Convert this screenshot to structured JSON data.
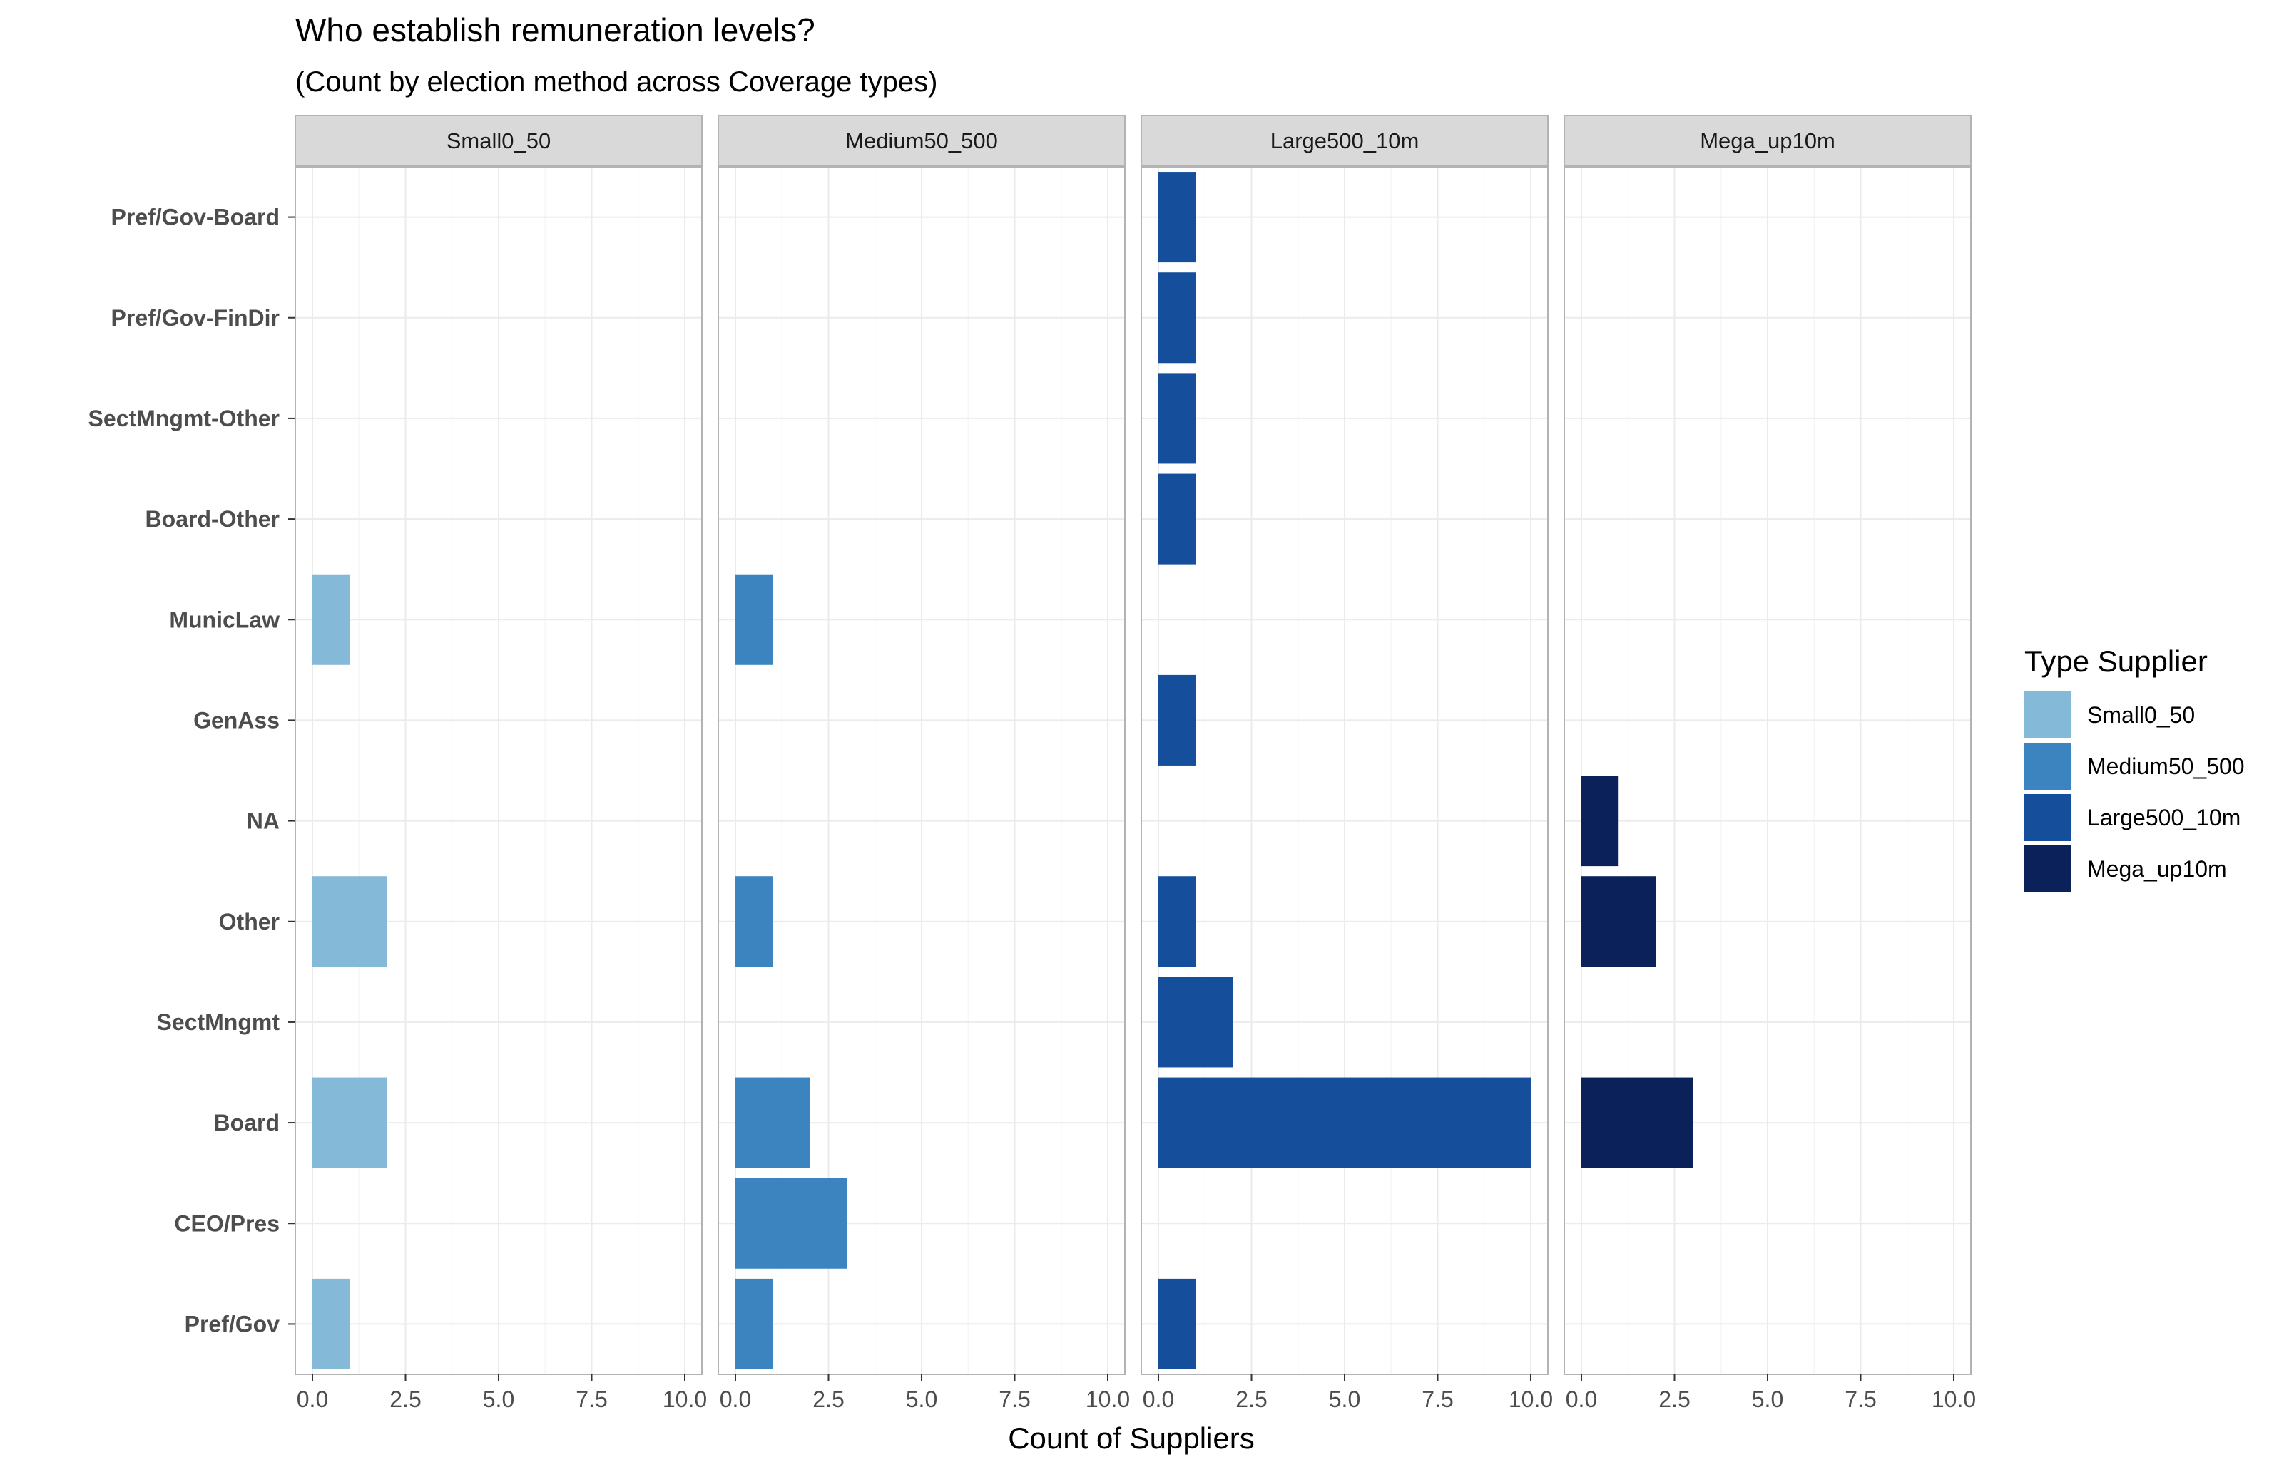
{
  "chart_data": {
    "type": "bar",
    "orientation": "horizontal",
    "title": "Who establish remuneration levels?",
    "subtitle": "(Count by election method across Coverage types)",
    "xlabel": "Count of Suppliers",
    "ylabel": "",
    "xlim": [
      0,
      10
    ],
    "x_ticks": [
      "0.0",
      "2.5",
      "5.0",
      "7.5",
      "10.0"
    ],
    "grid": true,
    "legend_placement": "right",
    "legend_title": "Type Supplier",
    "categories": [
      "Pref/Gov-Board",
      "Pref/Gov-FinDir",
      "SectMngmt-Other",
      "Board-Other",
      "MunicLaw",
      "GenAss",
      "NA",
      "Other",
      "SectMngmt",
      "Board",
      "CEO/Pres",
      "Pref/Gov"
    ],
    "panels": [
      {
        "name": "Small0_50",
        "color": "#84b9d8",
        "values": [
          0,
          0,
          0,
          0,
          1,
          0,
          0,
          2,
          0,
          2,
          0,
          1
        ]
      },
      {
        "name": "Medium50_500",
        "color": "#3b84bf",
        "values": [
          0,
          0,
          0,
          0,
          1,
          0,
          0,
          1,
          0,
          2,
          3,
          1
        ]
      },
      {
        "name": "Large500_10m",
        "color": "#154f9b",
        "values": [
          1,
          1,
          1,
          1,
          0,
          1,
          0,
          1,
          2,
          10,
          0,
          1
        ]
      },
      {
        "name": "Mega_up10m",
        "color": "#0b2159",
        "values": [
          0,
          0,
          0,
          0,
          0,
          0,
          1,
          2,
          0,
          3,
          0,
          0
        ]
      }
    ]
  }
}
